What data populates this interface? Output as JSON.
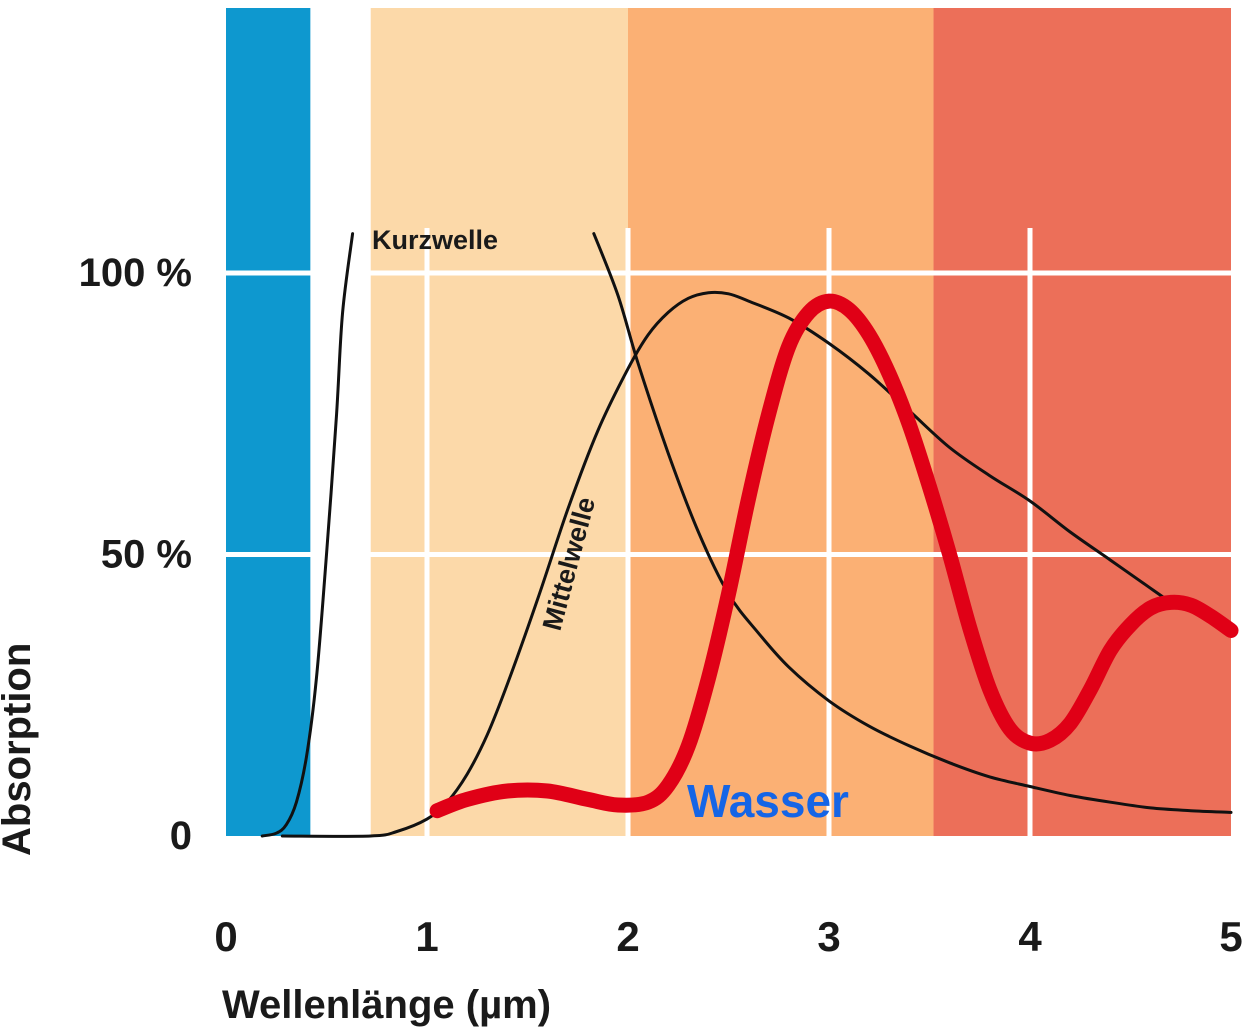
{
  "chart_data": {
    "type": "line",
    "xlabel": "Wellenlänge (µm)",
    "ylabel": "Absorption",
    "xlim": [
      0,
      5
    ],
    "ylim": [
      0,
      100
    ],
    "x_ticks": [
      "0",
      "1",
      "2",
      "3",
      "4",
      "5"
    ],
    "y_ticks": [
      {
        "value": 0,
        "label": "0"
      },
      {
        "value": 50,
        "label": "50 %"
      },
      {
        "value": 100,
        "label": "100 %"
      }
    ],
    "grid": true,
    "bands": [
      {
        "from": 0,
        "to": 0.42,
        "color": "#0e98cf"
      },
      {
        "from": 0.42,
        "to": 0.72,
        "color": "#ffffff"
      },
      {
        "from": 0.72,
        "to": 2.0,
        "color": "#fcd9a9"
      },
      {
        "from": 2.0,
        "to": 3.52,
        "color": "#fbb074"
      },
      {
        "from": 3.52,
        "to": 5.0,
        "color": "#ec6f59"
      }
    ],
    "series": [
      {
        "name": "Kurzwelle",
        "color": "#111111",
        "style": "thin",
        "points": [
          [
            0.18,
            0
          ],
          [
            0.25,
            0.5
          ],
          [
            0.3,
            2
          ],
          [
            0.35,
            6
          ],
          [
            0.4,
            14
          ],
          [
            0.45,
            28
          ],
          [
            0.5,
            50
          ],
          [
            0.55,
            75
          ],
          [
            0.58,
            93
          ],
          [
            0.63,
            107
          ]
        ]
      },
      {
        "name": "Mittelwelle",
        "color": "#111111",
        "style": "thin",
        "points": [
          [
            0.28,
            0
          ],
          [
            0.72,
            0
          ],
          [
            0.85,
            0.8
          ],
          [
            1.0,
            3
          ],
          [
            1.1,
            6
          ],
          [
            1.2,
            11
          ],
          [
            1.3,
            18
          ],
          [
            1.4,
            27
          ],
          [
            1.55,
            42
          ],
          [
            1.7,
            58
          ],
          [
            1.85,
            72
          ],
          [
            2.0,
            83
          ],
          [
            2.1,
            89
          ],
          [
            2.2,
            93
          ],
          [
            2.3,
            95.5
          ],
          [
            2.4,
            96.5
          ],
          [
            2.5,
            96.3
          ],
          [
            2.6,
            95
          ],
          [
            2.8,
            92
          ],
          [
            3.0,
            87.5
          ],
          [
            3.2,
            82
          ],
          [
            3.4,
            75.5
          ],
          [
            3.6,
            69
          ],
          [
            3.8,
            64
          ],
          [
            4.0,
            59.5
          ],
          [
            4.2,
            54
          ],
          [
            4.4,
            49
          ],
          [
            4.6,
            44
          ],
          [
            4.74,
            40.5
          ]
        ]
      },
      {
        "name": "",
        "color": "#111111",
        "style": "thin",
        "points": [
          [
            1.83,
            107
          ],
          [
            1.95,
            96
          ],
          [
            2.05,
            84
          ],
          [
            2.2,
            68
          ],
          [
            2.35,
            54
          ],
          [
            2.5,
            43
          ],
          [
            2.65,
            36
          ],
          [
            2.8,
            30
          ],
          [
            3.0,
            24
          ],
          [
            3.2,
            19.5
          ],
          [
            3.4,
            16
          ],
          [
            3.6,
            13
          ],
          [
            3.8,
            10.5
          ],
          [
            4.0,
            8.8
          ],
          [
            4.2,
            7.2
          ],
          [
            4.4,
            6
          ],
          [
            4.6,
            5
          ],
          [
            4.8,
            4.5
          ],
          [
            5.0,
            4.2
          ]
        ]
      },
      {
        "name": "Wasser",
        "color": "#e00016",
        "style": "thick",
        "points": [
          [
            1.05,
            4.5
          ],
          [
            1.2,
            6.5
          ],
          [
            1.4,
            8
          ],
          [
            1.6,
            8
          ],
          [
            1.8,
            6.5
          ],
          [
            1.95,
            5.5
          ],
          [
            2.1,
            6
          ],
          [
            2.2,
            9
          ],
          [
            2.3,
            16
          ],
          [
            2.4,
            28
          ],
          [
            2.5,
            43
          ],
          [
            2.6,
            60
          ],
          [
            2.7,
            75
          ],
          [
            2.8,
            87
          ],
          [
            2.9,
            93
          ],
          [
            3.0,
            95
          ],
          [
            3.1,
            93.5
          ],
          [
            3.2,
            89
          ],
          [
            3.3,
            82
          ],
          [
            3.4,
            73
          ],
          [
            3.5,
            62
          ],
          [
            3.6,
            50
          ],
          [
            3.7,
            37
          ],
          [
            3.8,
            26
          ],
          [
            3.9,
            19
          ],
          [
            4.0,
            16.5
          ],
          [
            4.1,
            17
          ],
          [
            4.2,
            20
          ],
          [
            4.3,
            26
          ],
          [
            4.4,
            33
          ],
          [
            4.5,
            37.5
          ],
          [
            4.6,
            40.5
          ],
          [
            4.7,
            41.5
          ],
          [
            4.8,
            41
          ],
          [
            4.9,
            39
          ],
          [
            5.0,
            36.5
          ]
        ]
      }
    ],
    "annotations": [
      {
        "text": "Kurzwelle",
        "series": 0
      },
      {
        "text": "Mittelwelle",
        "series": 1
      },
      {
        "text": "Wasser",
        "series": 3,
        "color": "#1565e6"
      }
    ]
  }
}
